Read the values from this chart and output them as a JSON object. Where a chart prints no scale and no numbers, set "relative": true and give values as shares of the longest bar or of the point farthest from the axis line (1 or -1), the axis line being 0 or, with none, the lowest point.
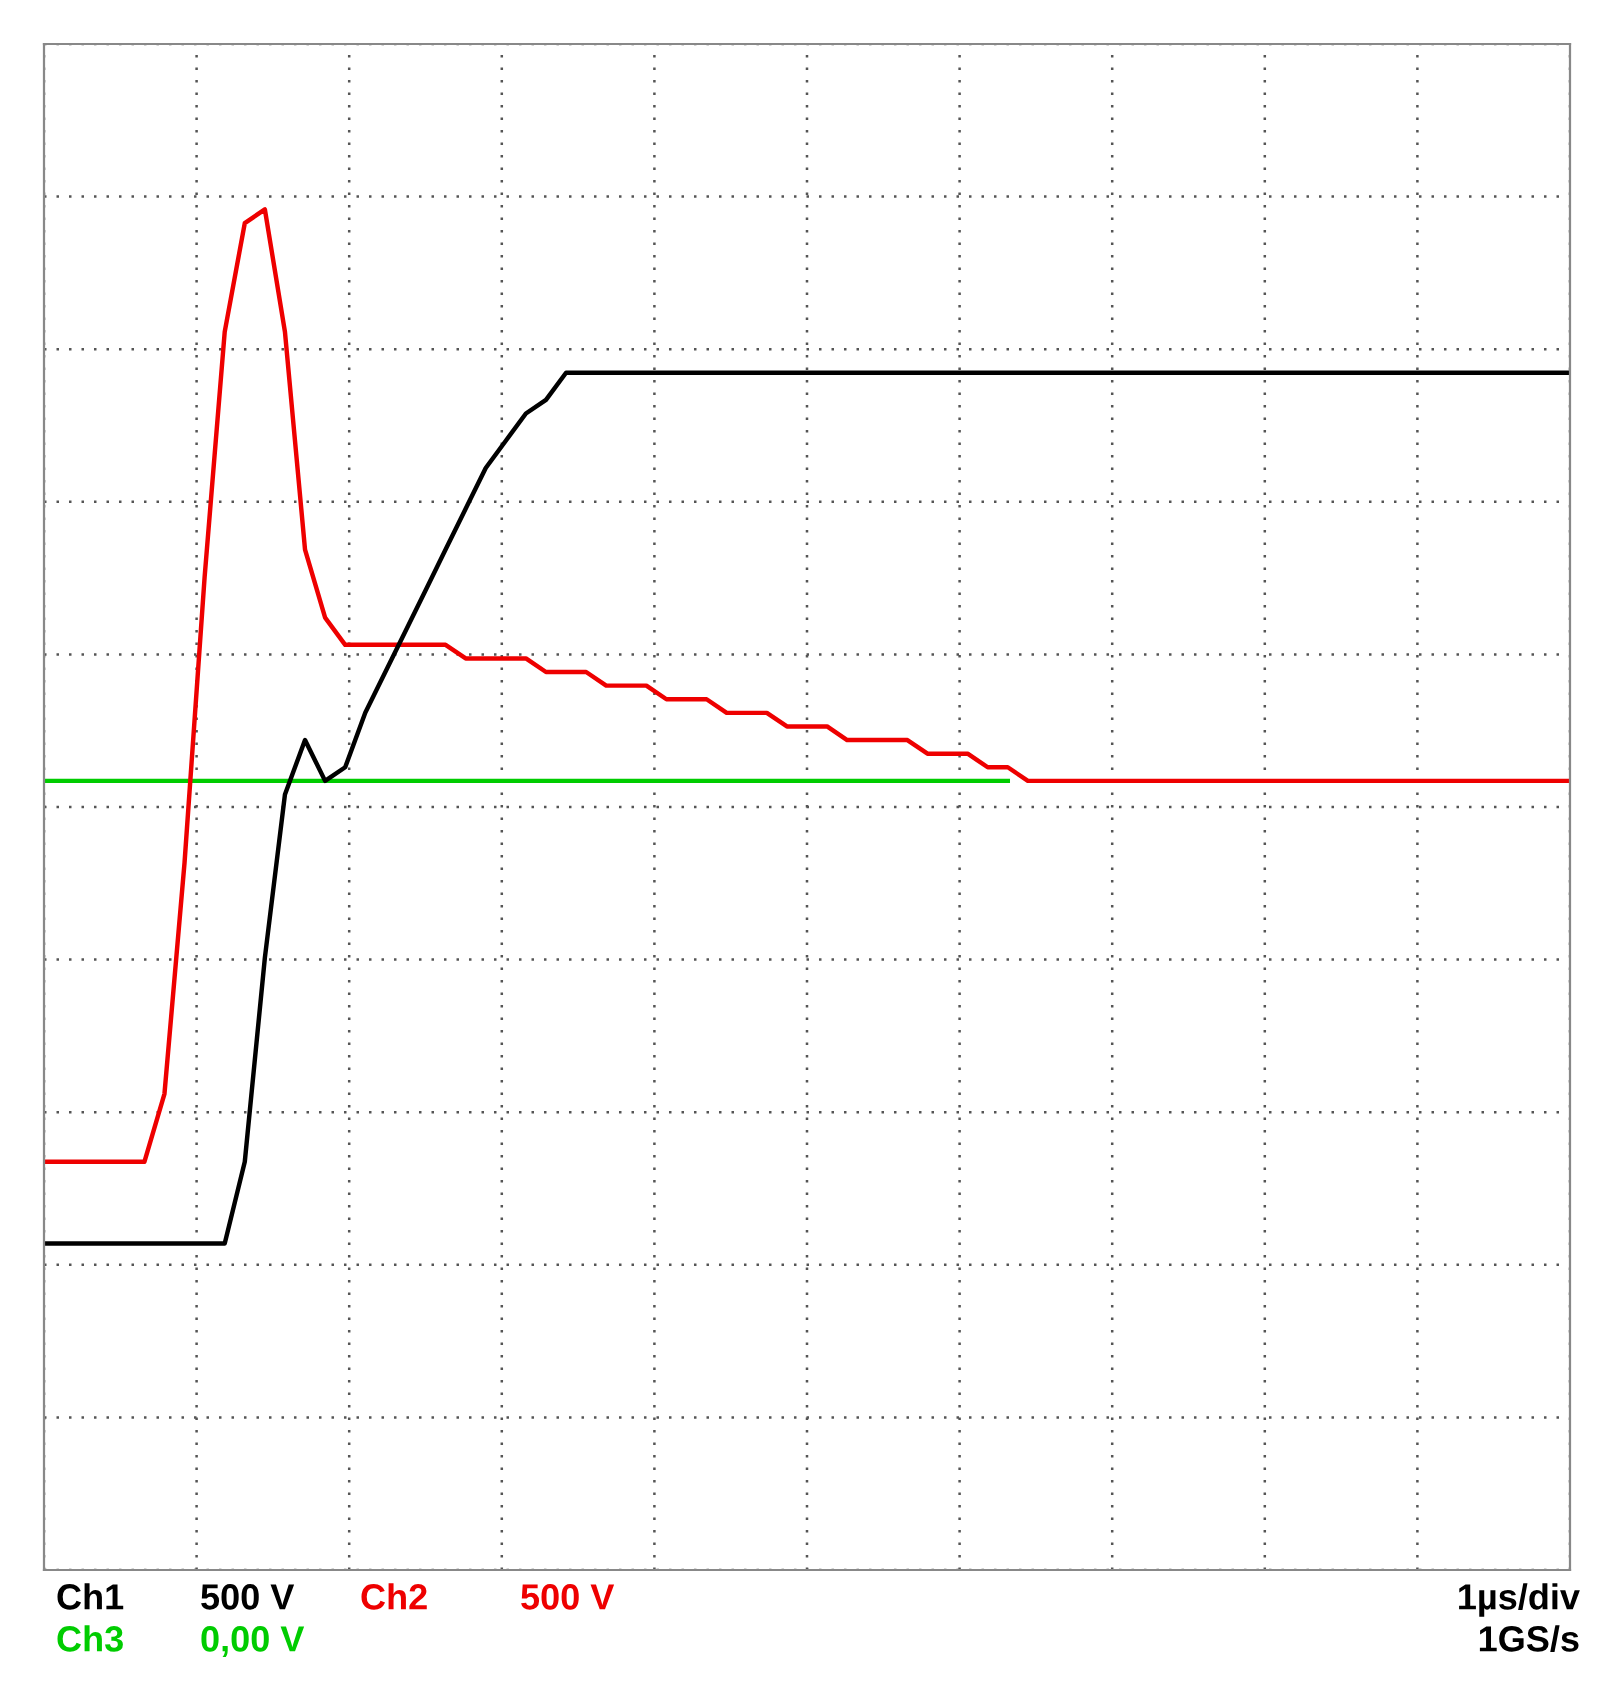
{
  "chart_data": {
    "type": "line",
    "relative": true,
    "grid": true,
    "tick_labels": false,
    "line_style": "solid",
    "marker": "none",
    "categories": [
      null,
      null,
      null,
      null,
      null,
      null,
      null,
      null,
      null,
      null,
      null,
      null,
      null,
      null,
      null,
      null,
      null,
      null,
      null,
      null,
      null,
      null,
      null,
      null,
      null,
      null,
      null,
      null,
      null,
      null,
      null,
      null,
      null,
      null,
      null,
      null,
      null,
      null,
      null,
      null,
      null,
      null,
      null,
      null,
      null,
      null,
      null,
      null,
      null,
      null,
      null,
      null,
      null,
      null,
      null,
      null,
      null,
      null,
      null,
      null,
      null,
      null,
      null,
      null,
      null,
      null,
      null,
      null,
      null,
      null,
      null,
      null,
      null,
      null,
      null,
      null,
      null
    ],
    "series": [
      {
        "color": "#00cc00",
        "values": [
          0.58,
          0.58,
          0.58,
          0.58,
          0.58,
          0.58,
          0.58,
          0.58,
          0.58,
          0.58,
          0.58,
          0.58,
          0.58,
          0.58,
          0.58,
          0.58,
          0.58,
          0.58,
          0.58,
          0.58,
          0.58,
          0.58,
          0.58,
          0.58,
          0.58,
          0.58,
          0.58,
          0.58,
          0.58,
          0.58,
          0.58,
          0.58,
          0.58,
          0.58,
          0.58,
          0.58,
          0.58,
          0.58,
          0.58,
          0.58,
          0.58,
          0.58,
          0.58,
          0.58,
          0.58,
          0.58,
          0.58,
          0.58,
          0.58,
          null,
          null,
          null,
          null,
          null,
          null,
          null,
          null,
          null,
          null,
          null,
          null,
          null,
          null,
          null,
          null,
          null,
          null,
          null,
          null,
          null,
          null,
          null,
          null,
          null,
          null,
          null,
          null
        ]
      },
      {
        "color": "#ee0000",
        "values": [
          0.3,
          0.3,
          0.3,
          0.3,
          0.3,
          0.3,
          0.35,
          0.52,
          0.73,
          0.91,
          0.99,
          1.0,
          0.91,
          0.75,
          0.7,
          0.68,
          0.68,
          0.68,
          0.68,
          0.68,
          0.68,
          0.67,
          0.67,
          0.67,
          0.67,
          0.66,
          0.66,
          0.66,
          0.65,
          0.65,
          0.65,
          0.64,
          0.64,
          0.64,
          0.63,
          0.63,
          0.63,
          0.62,
          0.62,
          0.62,
          0.61,
          0.61,
          0.61,
          0.61,
          0.6,
          0.6,
          0.6,
          0.59,
          0.59,
          0.58,
          0.58,
          0.58,
          0.58,
          0.58,
          0.58,
          0.58,
          0.58,
          0.58,
          0.58,
          0.58,
          0.58,
          0.58,
          0.58,
          0.58,
          0.58,
          0.58,
          0.58,
          0.58,
          0.58,
          0.58,
          0.58,
          0.58,
          0.58,
          0.58,
          0.58,
          0.58,
          0.58
        ]
      },
      {
        "color": "#000000",
        "values": [
          0.24,
          0.24,
          0.24,
          0.24,
          0.24,
          0.24,
          0.24,
          0.24,
          0.24,
          0.24,
          0.3,
          0.45,
          0.57,
          0.61,
          0.58,
          0.59,
          0.63,
          0.66,
          0.69,
          0.72,
          0.75,
          0.78,
          0.81,
          0.83,
          0.85,
          0.86,
          0.88,
          0.88,
          0.88,
          0.88,
          0.88,
          0.88,
          0.88,
          0.88,
          0.88,
          0.88,
          0.88,
          0.88,
          0.88,
          0.88,
          0.88,
          0.88,
          0.88,
          0.88,
          0.88,
          0.88,
          0.88,
          0.88,
          0.88,
          0.88,
          0.88,
          0.88,
          0.88,
          0.88,
          0.88,
          0.88,
          0.88,
          0.88,
          0.88,
          0.88,
          0.88,
          0.88,
          0.88,
          0.88,
          0.88,
          0.88,
          0.88,
          0.88,
          0.88,
          0.88,
          0.88,
          0.88,
          0.88,
          0.88,
          0.88,
          0.88,
          0.88
        ]
      }
    ],
    "annotations": [
      "Ch1",
      "500 V",
      "Ch2",
      "500 V",
      "1µs/div",
      "Ch3",
      "0,00 V",
      "1GS/s"
    ]
  }
}
